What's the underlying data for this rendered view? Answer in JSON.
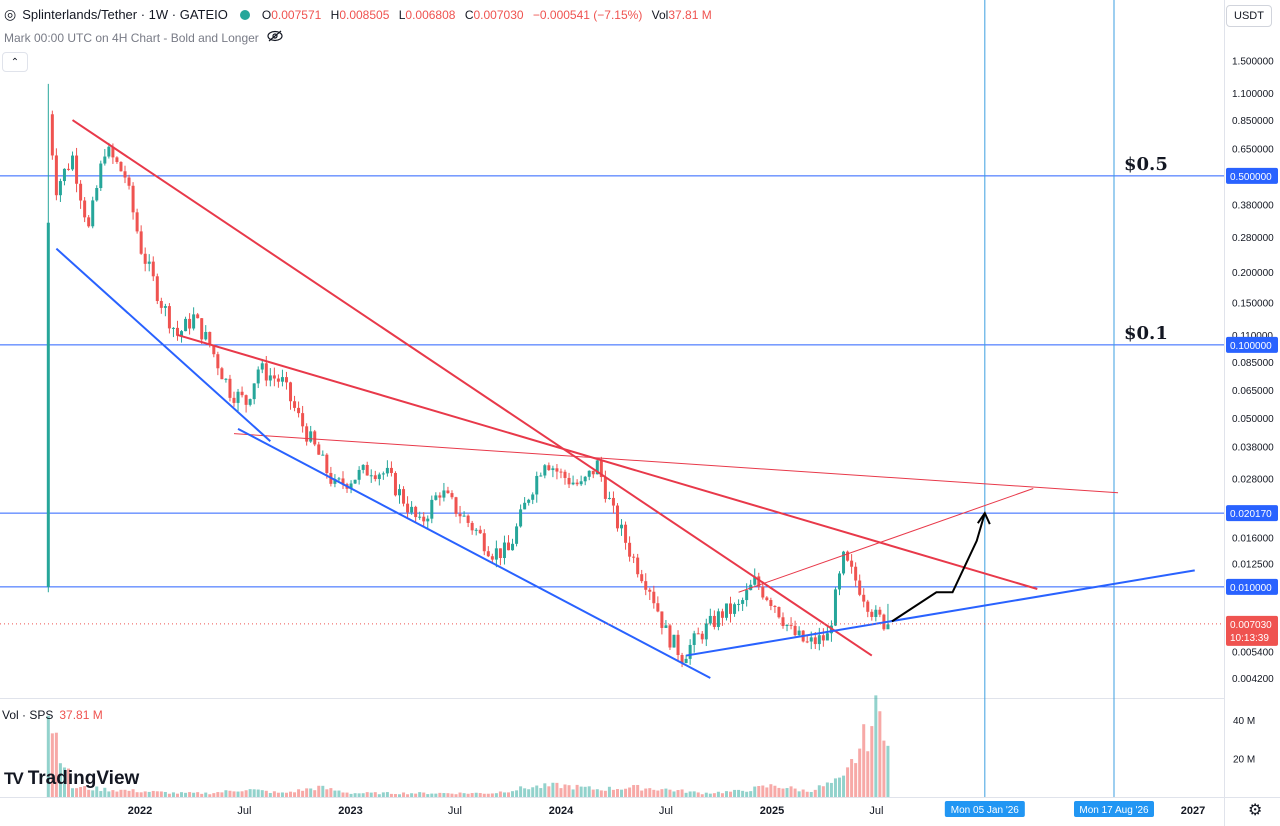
{
  "header": {
    "symbol": "Splinterlands/Tether · 1W · GATEIO",
    "ohlc": [
      {
        "k": "O",
        "v": "0.007571"
      },
      {
        "k": "H",
        "v": "0.008505"
      },
      {
        "k": "L",
        "v": "0.006808"
      },
      {
        "k": "C",
        "v": "0.007030"
      },
      {
        "k": "",
        "v": "−0.000541 (−7.15%)"
      },
      {
        "k": "Vol",
        "v": "37.81 M"
      }
    ],
    "mark_text": "Mark 00:00 UTC on 4H Chart - Bold and Longer",
    "currency": "USDT",
    "collapse": "⌃"
  },
  "volume_legend": {
    "label": "Vol · SPS",
    "value": "37.81 M"
  },
  "brand": {
    "icon": "TV",
    "name": "TradingView"
  },
  "settings_icon": "⚙",
  "colors": {
    "up": "#26a69a",
    "down": "#ef5350",
    "trend_red": "#e8394a",
    "trend_blue": "#2962ff",
    "hline": "#2962ff",
    "label_bg": "#2962ff"
  },
  "chart_data": {
    "type": "candlestick",
    "scale": "log",
    "y_ticks": [
      "1.500000",
      "1.100000",
      "0.850000",
      "0.650000",
      "0.380000",
      "0.280000",
      "0.200000",
      "0.150000",
      "0.110000",
      "0.085000",
      "0.065000",
      "0.050000",
      "0.038000",
      "0.028000",
      "0.016000",
      "0.012500",
      "0.005400",
      "0.004200"
    ],
    "y_tick_values": [
      1.5,
      1.1,
      0.85,
      0.65,
      0.38,
      0.28,
      0.2,
      0.15,
      0.11,
      0.085,
      0.065,
      0.05,
      0.038,
      0.028,
      0.016,
      0.0125,
      0.0054,
      0.0042
    ],
    "x_ticks": [
      {
        "label": "2022",
        "date": "2022-01-01"
      },
      {
        "label": "Jul",
        "date": "2022-07-01"
      },
      {
        "label": "2023",
        "date": "2023-01-01"
      },
      {
        "label": "Jul",
        "date": "2023-07-01"
      },
      {
        "label": "2024",
        "date": "2024-01-01"
      },
      {
        "label": "Jul",
        "date": "2024-07-01"
      },
      {
        "label": "2025",
        "date": "2025-01-01"
      },
      {
        "label": "Jul",
        "date": "2025-07-01"
      },
      {
        "label": "2027",
        "date": "2027-01-01"
      }
    ],
    "vertical_markers": [
      {
        "label": "Mon 05 Jan '26",
        "date": "2026-01-05"
      },
      {
        "label": "Mon 17 Aug '26",
        "date": "2026-08-17"
      }
    ],
    "horizontal_levels": [
      {
        "value": 0.5,
        "label": "0.500000",
        "annotation": "$0.5"
      },
      {
        "value": 0.1,
        "label": "0.100000",
        "annotation": "$0.1"
      },
      {
        "value": 0.02017,
        "label": "0.020170",
        "annotation": ""
      },
      {
        "value": 0.01,
        "label": "0.010000",
        "annotation": ""
      }
    ],
    "last_price": {
      "value": 0.00703,
      "label": "0.007030",
      "countdown": "10:13:39"
    },
    "volume_ticks": [
      {
        "label": "40 M",
        "value": 40
      },
      {
        "label": "20 M",
        "value": 20
      }
    ],
    "series_points": [
      [
        "2021-07-26",
        0.9
      ],
      [
        "2021-08-09",
        0.45
      ],
      [
        "2021-09-06",
        0.6
      ],
      [
        "2021-10-04",
        0.3
      ],
      [
        "2021-11-01",
        0.65
      ],
      [
        "2021-12-06",
        0.5
      ],
      [
        "2022-01-03",
        0.25
      ],
      [
        "2022-02-07",
        0.15
      ],
      [
        "2022-03-07",
        0.11
      ],
      [
        "2022-04-04",
        0.13
      ],
      [
        "2022-05-02",
        0.1
      ],
      [
        "2022-06-06",
        0.065
      ],
      [
        "2022-07-04",
        0.058
      ],
      [
        "2022-07-25",
        0.08
      ],
      [
        "2022-09-05",
        0.07
      ],
      [
        "2022-10-03",
        0.05
      ],
      [
        "2022-11-07",
        0.035
      ],
      [
        "2022-12-05",
        0.026
      ],
      [
        "2023-01-02",
        0.028
      ],
      [
        "2023-02-06",
        0.031
      ],
      [
        "2023-03-06",
        0.029
      ],
      [
        "2023-04-03",
        0.023
      ],
      [
        "2023-05-01",
        0.018
      ],
      [
        "2023-06-05",
        0.025
      ],
      [
        "2023-07-03",
        0.021
      ],
      [
        "2023-08-07",
        0.017
      ],
      [
        "2023-09-04",
        0.014
      ],
      [
        "2023-10-02",
        0.014
      ],
      [
        "2023-11-06",
        0.024
      ],
      [
        "2023-12-04",
        0.034
      ],
      [
        "2024-01-01",
        0.029
      ],
      [
        "2024-02-05",
        0.026
      ],
      [
        "2024-03-04",
        0.032
      ],
      [
        "2024-04-01",
        0.02
      ],
      [
        "2024-05-06",
        0.013
      ],
      [
        "2024-06-03",
        0.01
      ],
      [
        "2024-07-01",
        0.0065
      ],
      [
        "2024-07-29",
        0.0052
      ],
      [
        "2024-09-02",
        0.0065
      ],
      [
        "2024-10-07",
        0.0078
      ],
      [
        "2024-11-04",
        0.0082
      ],
      [
        "2024-12-02",
        0.0105
      ],
      [
        "2025-01-06",
        0.0085
      ],
      [
        "2025-02-03",
        0.0065
      ],
      [
        "2025-03-03",
        0.0058
      ],
      [
        "2025-04-07",
        0.0062
      ],
      [
        "2025-05-05",
        0.013
      ],
      [
        "2025-06-02",
        0.01
      ],
      [
        "2025-06-30",
        0.0075
      ],
      [
        "2025-07-21",
        0.007
      ]
    ],
    "volume_series_million": [
      [
        "2021-07-26",
        45
      ],
      [
        "2021-09-06",
        5
      ],
      [
        "2021-11-01",
        4
      ],
      [
        "2022-01-03",
        3
      ],
      [
        "2022-03-07",
        2
      ],
      [
        "2022-05-02",
        2
      ],
      [
        "2022-07-04",
        4
      ],
      [
        "2022-09-05",
        2
      ],
      [
        "2022-11-07",
        5
      ],
      [
        "2023-01-02",
        2
      ],
      [
        "2023-03-06",
        2
      ],
      [
        "2023-05-01",
        2
      ],
      [
        "2023-07-03",
        2
      ],
      [
        "2023-09-04",
        2
      ],
      [
        "2023-11-06",
        5
      ],
      [
        "2024-01-01",
        6
      ],
      [
        "2024-03-04",
        4
      ],
      [
        "2024-05-06",
        5
      ],
      [
        "2024-07-01",
        4
      ],
      [
        "2024-09-02",
        2
      ],
      [
        "2024-11-04",
        3
      ],
      [
        "2025-01-06",
        6
      ],
      [
        "2025-03-03",
        3
      ],
      [
        "2025-05-05",
        9
      ],
      [
        "2025-06-02",
        25
      ],
      [
        "2025-06-30",
        42
      ],
      [
        "2025-07-21",
        38
      ]
    ]
  }
}
